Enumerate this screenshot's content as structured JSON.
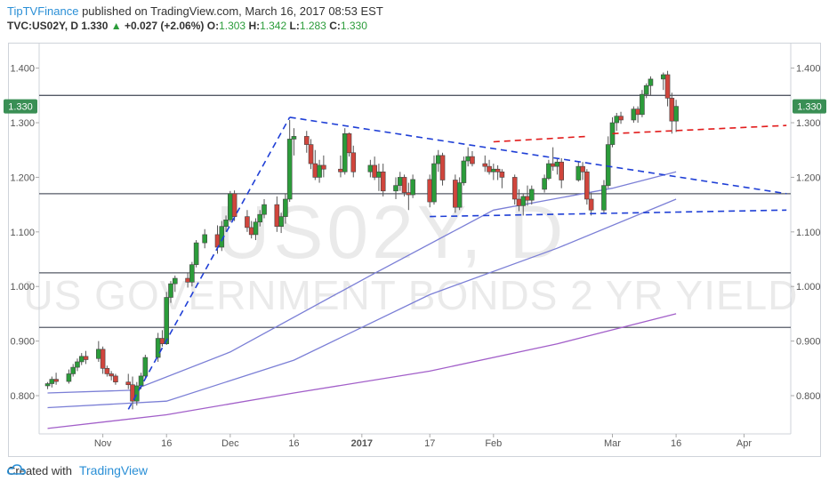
{
  "header": {
    "publisher": "TipTVFinance",
    "published_text": "published on TradingView.com, March 16, 2017 08:53 EST",
    "symbol": "TVC:US02Y, D",
    "last": "1.330",
    "change": "+0.027 (+2.06%)",
    "o_label": "O:",
    "o_value": "1.303",
    "h_label": "H:",
    "h_value": "1.342",
    "l_label": "L:",
    "l_value": "1.283",
    "c_label": "C:",
    "c_value": "1.330"
  },
  "watermark": {
    "symbol": "US02Y, D",
    "description": "US GOVERNMENT BONDS 2 YR YIELD"
  },
  "footer": {
    "created_with": "Created with",
    "brand": "TradingView"
  },
  "colors": {
    "up": "#2b9c3a",
    "down": "#d0453c",
    "ma_short": "#7b7fd6",
    "ma_long": "#a25fc9",
    "trend_blue": "#1f3fd6",
    "trend_red": "#e21c1c",
    "hline": "#555a66",
    "price_tag": "#3a8f55"
  },
  "chart_data": {
    "type": "candlestick",
    "title": "",
    "price_axis": {
      "ticks": [
        "1.400",
        "1.300",
        "1.200",
        "1.100",
        "1.000",
        "0.900",
        "0.800"
      ],
      "range": [
        0.73,
        1.445
      ],
      "current_tag": "1.330"
    },
    "time_axis": {
      "ticks": [
        {
          "label": "Nov",
          "date": "2016-11-01"
        },
        {
          "label": "16",
          "date": "2016-11-16"
        },
        {
          "label": "Dec",
          "date": "2016-12-01"
        },
        {
          "label": "16",
          "date": "2016-12-16"
        },
        {
          "label": "2017",
          "date": "2017-01-01",
          "bold": true
        },
        {
          "label": "17",
          "date": "2017-01-17"
        },
        {
          "label": "Feb",
          "date": "2017-02-01"
        },
        {
          "label": "Mar",
          "date": "2017-03-01"
        },
        {
          "label": "16",
          "date": "2017-03-16"
        },
        {
          "label": "Apr",
          "date": "2017-04-01"
        }
      ],
      "range": [
        "2016-10-17",
        "2017-04-12"
      ]
    },
    "horizontal_levels": [
      1.35,
      1.17,
      1.025,
      0.925
    ],
    "candles": [
      [
        "2016-10-19",
        0.818,
        0.825,
        0.812,
        0.822
      ],
      [
        "2016-10-20",
        0.822,
        0.835,
        0.815,
        0.83
      ],
      [
        "2016-10-21",
        0.83,
        0.842,
        0.82,
        0.826
      ],
      [
        "2016-10-24",
        0.826,
        0.848,
        0.822,
        0.84
      ],
      [
        "2016-10-25",
        0.84,
        0.858,
        0.835,
        0.852
      ],
      [
        "2016-10-26",
        0.852,
        0.868,
        0.845,
        0.862
      ],
      [
        "2016-10-27",
        0.862,
        0.878,
        0.856,
        0.872
      ],
      [
        "2016-10-28",
        0.872,
        0.882,
        0.858,
        0.866
      ],
      [
        "2016-10-31",
        0.868,
        0.9,
        0.862,
        0.885
      ],
      [
        "2016-11-01",
        0.885,
        0.89,
        0.84,
        0.85
      ],
      [
        "2016-11-02",
        0.85,
        0.855,
        0.835,
        0.84
      ],
      [
        "2016-11-03",
        0.84,
        0.845,
        0.828,
        0.836
      ],
      [
        "2016-11-04",
        0.836,
        0.84,
        0.82,
        0.825
      ],
      [
        "2016-11-07",
        0.825,
        0.84,
        0.812,
        0.82
      ],
      [
        "2016-11-08",
        0.82,
        0.835,
        0.775,
        0.79
      ],
      [
        "2016-11-09",
        0.79,
        0.825,
        0.782,
        0.818
      ],
      [
        "2016-11-10",
        0.818,
        0.842,
        0.812,
        0.836
      ],
      [
        "2016-11-11",
        0.836,
        0.875,
        0.832,
        0.87
      ],
      [
        "2016-11-14",
        0.87,
        0.915,
        0.862,
        0.905
      ],
      [
        "2016-11-15",
        0.905,
        0.92,
        0.89,
        0.895
      ],
      [
        "2016-11-16",
        0.895,
        0.99,
        0.893,
        0.98
      ],
      [
        "2016-11-17",
        0.98,
        1.01,
        0.97,
        1.005
      ],
      [
        "2016-11-18",
        1.005,
        1.02,
        0.99,
        1.015
      ],
      [
        "2016-11-21",
        1.015,
        1.025,
        0.998,
        1.008
      ],
      [
        "2016-11-22",
        1.008,
        1.045,
        1.0,
        1.04
      ],
      [
        "2016-11-23",
        1.04,
        1.085,
        1.035,
        1.08
      ],
      [
        "2016-11-25",
        1.08,
        1.105,
        1.07,
        1.095
      ],
      [
        "2016-11-28",
        1.095,
        1.112,
        1.06,
        1.072
      ],
      [
        "2016-11-29",
        1.072,
        1.12,
        1.065,
        1.11
      ],
      [
        "2016-11-30",
        1.11,
        1.13,
        1.1,
        1.122
      ],
      [
        "2016-12-01",
        1.122,
        1.175,
        1.118,
        1.17
      ],
      [
        "2016-12-02",
        1.17,
        1.176,
        1.12,
        1.128
      ],
      [
        "2016-12-05",
        1.128,
        1.14,
        1.1,
        1.108
      ],
      [
        "2016-12-06",
        1.108,
        1.12,
        1.088,
        1.095
      ],
      [
        "2016-12-07",
        1.095,
        1.125,
        1.085,
        1.118
      ],
      [
        "2016-12-08",
        1.118,
        1.14,
        1.11,
        1.132
      ],
      [
        "2016-12-09",
        1.132,
        1.16,
        1.125,
        1.15
      ],
      [
        "2016-12-12",
        1.15,
        1.165,
        1.1,
        1.11
      ],
      [
        "2016-12-13",
        1.11,
        1.135,
        1.098,
        1.128
      ],
      [
        "2016-12-14",
        1.128,
        1.17,
        1.115,
        1.16
      ],
      [
        "2016-12-15",
        1.16,
        1.305,
        1.155,
        1.27
      ],
      [
        "2016-12-16",
        1.27,
        1.29,
        1.24,
        1.275
      ],
      [
        "2016-12-19",
        1.275,
        1.285,
        1.245,
        1.26
      ],
      [
        "2016-12-20",
        1.26,
        1.27,
        1.215,
        1.225
      ],
      [
        "2016-12-21",
        1.225,
        1.25,
        1.195,
        1.2
      ],
      [
        "2016-12-22",
        1.2,
        1.232,
        1.19,
        1.222
      ],
      [
        "2016-12-23",
        1.222,
        1.24,
        1.2,
        1.215
      ],
      [
        "2016-12-27",
        1.215,
        1.24,
        1.2,
        1.21
      ],
      [
        "2016-12-28",
        1.21,
        1.29,
        1.205,
        1.28
      ],
      [
        "2016-12-29",
        1.28,
        1.282,
        1.238,
        1.245
      ],
      [
        "2016-12-30",
        1.245,
        1.258,
        1.2,
        1.21
      ],
      [
        "2017-01-03",
        1.21,
        1.232,
        1.2,
        1.222
      ],
      [
        "2017-01-04",
        1.222,
        1.238,
        1.195,
        1.2
      ],
      [
        "2017-01-05",
        1.2,
        1.225,
        1.175,
        1.21
      ],
      [
        "2017-01-06",
        1.21,
        1.225,
        1.165,
        1.175
      ],
      [
        "2017-01-09",
        1.175,
        1.2,
        1.16,
        1.185
      ],
      [
        "2017-01-10",
        1.185,
        1.21,
        1.175,
        1.2
      ],
      [
        "2017-01-11",
        1.2,
        1.205,
        1.165,
        1.172
      ],
      [
        "2017-01-12",
        1.172,
        1.19,
        1.14,
        1.168
      ],
      [
        "2017-01-13",
        1.168,
        1.205,
        1.162,
        1.196
      ],
      [
        "2017-01-17",
        1.196,
        1.205,
        1.145,
        1.155
      ],
      [
        "2017-01-18",
        1.155,
        1.24,
        1.15,
        1.225
      ],
      [
        "2017-01-19",
        1.225,
        1.25,
        1.21,
        1.24
      ],
      [
        "2017-01-20",
        1.24,
        1.245,
        1.185,
        1.195
      ],
      [
        "2017-01-23",
        1.195,
        1.205,
        1.135,
        1.145
      ],
      [
        "2017-01-24",
        1.145,
        1.2,
        1.14,
        1.19
      ],
      [
        "2017-01-25",
        1.19,
        1.238,
        1.185,
        1.23
      ],
      [
        "2017-01-26",
        1.23,
        1.255,
        1.22,
        1.238
      ],
      [
        "2017-01-27",
        1.238,
        1.248,
        1.22,
        1.225
      ],
      [
        "2017-01-30",
        1.225,
        1.24,
        1.21,
        1.22
      ],
      [
        "2017-01-31",
        1.22,
        1.232,
        1.205,
        1.21
      ],
      [
        "2017-02-01",
        1.21,
        1.225,
        1.195,
        1.215
      ],
      [
        "2017-02-02",
        1.215,
        1.222,
        1.195,
        1.21
      ],
      [
        "2017-02-03",
        1.21,
        1.215,
        1.18,
        1.2
      ],
      [
        "2017-02-06",
        1.2,
        1.205,
        1.15,
        1.16
      ],
      [
        "2017-02-07",
        1.16,
        1.178,
        1.138,
        1.148
      ],
      [
        "2017-02-08",
        1.148,
        1.17,
        1.13,
        1.165
      ],
      [
        "2017-02-09",
        1.165,
        1.185,
        1.148,
        1.158
      ],
      [
        "2017-02-10",
        1.158,
        1.185,
        1.15,
        1.178
      ],
      [
        "2017-02-13",
        1.178,
        1.205,
        1.172,
        1.198
      ],
      [
        "2017-02-14",
        1.198,
        1.232,
        1.195,
        1.225
      ],
      [
        "2017-02-15",
        1.225,
        1.255,
        1.212,
        1.22
      ],
      [
        "2017-02-16",
        1.22,
        1.235,
        1.205,
        1.228
      ],
      [
        "2017-02-17",
        1.228,
        1.235,
        1.18,
        1.195
      ],
      [
        "2017-02-21",
        1.195,
        1.23,
        1.192,
        1.22
      ],
      [
        "2017-02-22",
        1.22,
        1.228,
        1.195,
        1.21
      ],
      [
        "2017-02-23",
        1.21,
        1.215,
        1.15,
        1.16
      ],
      [
        "2017-02-24",
        1.16,
        1.172,
        1.13,
        1.14
      ],
      [
        "2017-02-27",
        1.14,
        1.195,
        1.135,
        1.185
      ],
      [
        "2017-02-28",
        1.185,
        1.275,
        1.18,
        1.26
      ],
      [
        "2017-03-01",
        1.26,
        1.31,
        1.255,
        1.3
      ],
      [
        "2017-03-02",
        1.3,
        1.318,
        1.285,
        1.312
      ],
      [
        "2017-03-03",
        1.312,
        1.32,
        1.298,
        1.305
      ],
      [
        "2017-03-06",
        1.305,
        1.33,
        1.3,
        1.325
      ],
      [
        "2017-03-07",
        1.325,
        1.33,
        1.3,
        1.315
      ],
      [
        "2017-03-08",
        1.315,
        1.36,
        1.31,
        1.352
      ],
      [
        "2017-03-09",
        1.352,
        1.372,
        1.345,
        1.368
      ],
      [
        "2017-03-10",
        1.368,
        1.385,
        1.35,
        1.38
      ],
      [
        "2017-03-13",
        1.38,
        1.392,
        1.36,
        1.388
      ],
      [
        "2017-03-14",
        1.388,
        1.395,
        1.33,
        1.345
      ],
      [
        "2017-03-15",
        1.345,
        1.355,
        1.28,
        1.303
      ],
      [
        "2017-03-16",
        1.303,
        1.342,
        1.283,
        1.33
      ]
    ],
    "moving_averages": [
      {
        "points": [
          [
            "2016-10-19",
            0.805
          ],
          [
            "2016-11-08",
            0.81
          ],
          [
            "2016-12-01",
            0.88
          ],
          [
            "2017-01-03",
            1.02
          ],
          [
            "2017-02-01",
            1.14
          ],
          [
            "2017-03-01",
            1.18
          ],
          [
            "2017-03-16",
            1.21
          ]
        ]
      },
      {
        "points": [
          [
            "2016-10-19",
            0.778
          ],
          [
            "2016-11-16",
            0.79
          ],
          [
            "2016-12-16",
            0.865
          ],
          [
            "2017-01-17",
            0.985
          ],
          [
            "2017-02-16",
            1.07
          ],
          [
            "2017-03-16",
            1.16
          ]
        ]
      },
      {
        "points": [
          [
            "2016-10-19",
            0.74
          ],
          [
            "2016-11-16",
            0.765
          ],
          [
            "2016-12-16",
            0.805
          ],
          [
            "2017-01-17",
            0.845
          ],
          [
            "2017-02-16",
            0.895
          ],
          [
            "2017-03-16",
            0.95
          ]
        ]
      }
    ],
    "trendlines": [
      {
        "color": "blue",
        "dashed": true,
        "points": [
          [
            "2016-11-07",
            0.775
          ],
          [
            "2016-12-15",
            1.31
          ]
        ]
      },
      {
        "color": "blue",
        "dashed": true,
        "points": [
          [
            "2016-12-15",
            1.31
          ],
          [
            "2017-04-11",
            1.17
          ]
        ]
      },
      {
        "color": "blue",
        "dashed": true,
        "points": [
          [
            "2017-01-17",
            1.128
          ],
          [
            "2017-04-11",
            1.14
          ]
        ]
      },
      {
        "color": "red",
        "dashed": true,
        "points": [
          [
            "2017-02-01",
            1.265
          ],
          [
            "2017-02-23",
            1.275
          ]
        ]
      },
      {
        "color": "red",
        "dashed": true,
        "points": [
          [
            "2017-03-01",
            1.28
          ],
          [
            "2017-04-11",
            1.295
          ]
        ]
      }
    ]
  }
}
